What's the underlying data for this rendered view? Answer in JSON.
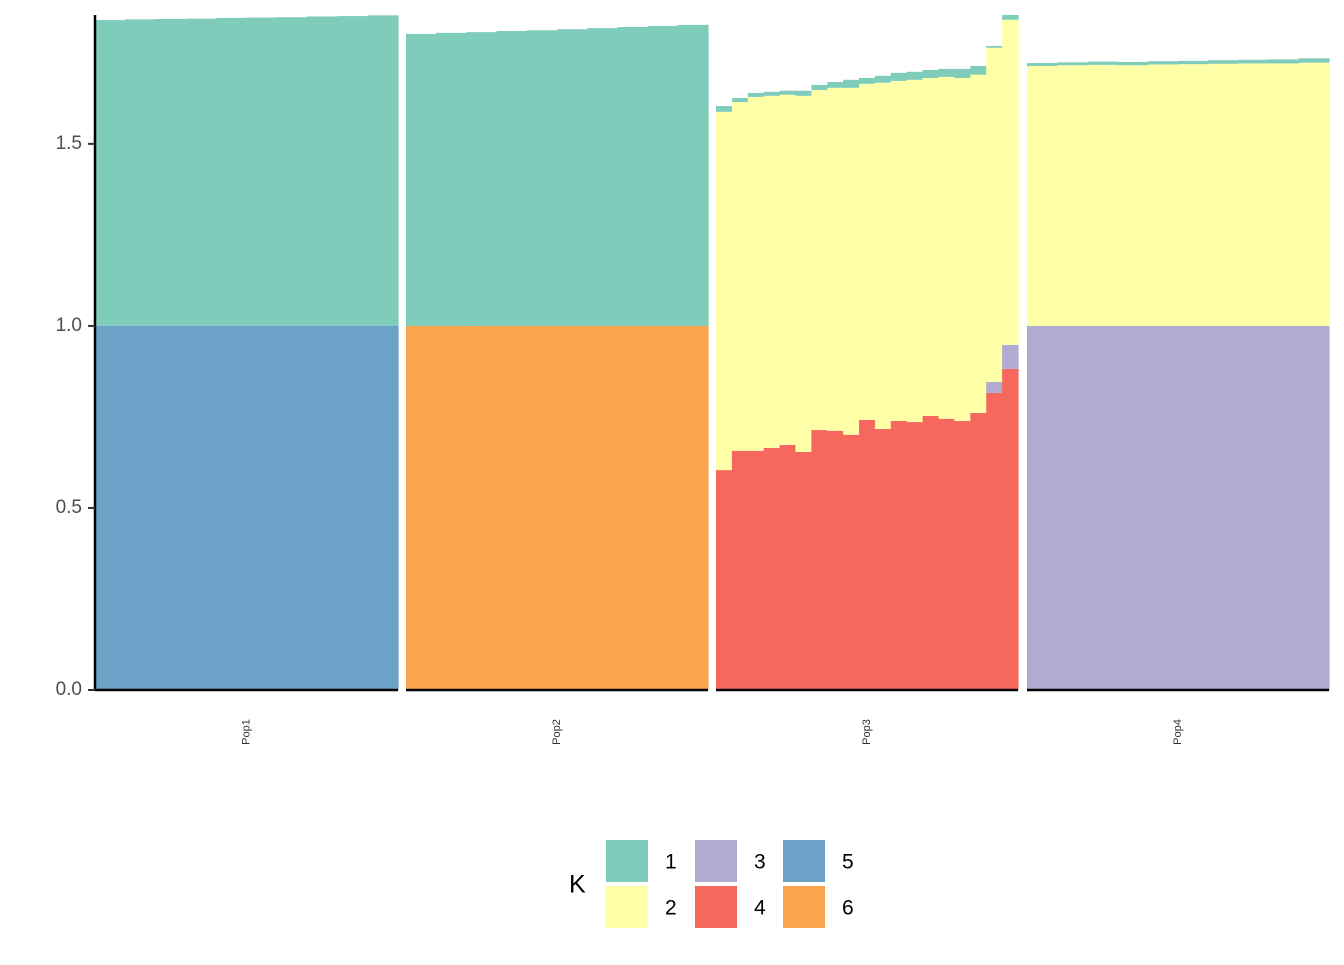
{
  "chart_data": {
    "type": "bar",
    "stacked": true,
    "ylim": [
      0,
      1.854
    ],
    "yticks": [
      {
        "value": 0,
        "label": "0.0"
      },
      0.5,
      {
        "value": 1,
        "label": "1.0"
      },
      1.5
    ],
    "legend": {
      "title": "K",
      "position": "bottom",
      "items": [
        {
          "name": "1",
          "color": "#7fccba"
        },
        {
          "name": "2",
          "color": "#ffffa7"
        },
        {
          "name": "3",
          "color": "#b0abd0"
        },
        {
          "name": "4",
          "color": "#f6685e"
        },
        {
          "name": "5",
          "color": "#6ca1c8"
        },
        {
          "name": "6",
          "color": "#f9a550"
        }
      ]
    },
    "panels": [
      {
        "label": "Pop1",
        "categories": [
          null,
          null,
          null,
          null,
          null,
          null,
          null,
          null,
          null,
          null
        ],
        "series": [
          {
            "name": "5",
            "values": [
              1,
              1,
              1,
              1,
              1,
              1,
              1,
              1,
              1,
              1
            ]
          },
          {
            "name": "1",
            "values": [
              0.84,
              0.842,
              0.843,
              0.844,
              0.846,
              0.847,
              0.848,
              0.85,
              0.851,
              0.853
            ]
          }
        ]
      },
      {
        "label": "Pop2",
        "categories": [
          null,
          null,
          null,
          null,
          null,
          null,
          null,
          null,
          null,
          null
        ],
        "series": [
          {
            "name": "6",
            "values": [
              1,
              1,
              1,
              1,
              1,
              1,
              1,
              1,
              1,
              1
            ]
          },
          {
            "name": "1",
            "values": [
              0.802,
              0.805,
              0.807,
              0.81,
              0.812,
              0.815,
              0.818,
              0.821,
              0.824,
              0.827
            ]
          }
        ]
      },
      {
        "label": "Pop3",
        "categories": [
          null,
          null,
          null,
          null,
          null,
          null,
          null,
          null,
          null,
          null,
          null,
          null,
          null,
          null,
          null,
          null,
          null,
          null,
          null
        ],
        "series": [
          {
            "name": "4",
            "values": [
              0.604,
              0.657,
              0.657,
              0.665,
              0.673,
              0.654,
              0.714,
              0.712,
              0.701,
              0.742,
              0.717,
              0.739,
              0.736,
              0.753,
              0.745,
              0.739,
              0.761,
              0.816,
              0.882
            ]
          },
          {
            "name": "3",
            "values": [
              0,
              0,
              0,
              0,
              0,
              0,
              0,
              0,
              0,
              0,
              0,
              0,
              0,
              0,
              0,
              0,
              0,
              0.03,
              0.066
            ]
          },
          {
            "name": "2",
            "values": [
              0.984,
              0.958,
              0.972,
              0.967,
              0.962,
              0.978,
              0.934,
              0.942,
              0.953,
              0.923,
              0.951,
              0.934,
              0.94,
              0.928,
              0.939,
              0.942,
              0.929,
              0.918,
              0.893
            ]
          },
          {
            "name": "1",
            "values": [
              0.016,
              0.011,
              0.011,
              0.011,
              0.011,
              0.014,
              0.014,
              0.016,
              0.022,
              0.016,
              0.019,
              0.022,
              0.022,
              0.022,
              0.022,
              0.025,
              0.024,
              0.005,
              0.013
            ]
          }
        ]
      },
      {
        "label": "Pop4",
        "categories": [
          null,
          null,
          null,
          null,
          null,
          null,
          null,
          null,
          null,
          null
        ],
        "series": [
          {
            "name": "3",
            "values": [
              1,
              1,
              1,
              1,
              1,
              1,
              1,
              1,
              1,
              1
            ]
          },
          {
            "name": "2",
            "values": [
              0.714,
              0.716,
              0.717,
              0.716,
              0.718,
              0.719,
              0.72,
              0.721,
              0.721,
              0.723
            ]
          },
          {
            "name": "1",
            "values": [
              0.008,
              0.008,
              0.009,
              0.009,
              0.009,
              0.009,
              0.01,
              0.01,
              0.011,
              0.012
            ]
          }
        ]
      }
    ]
  }
}
